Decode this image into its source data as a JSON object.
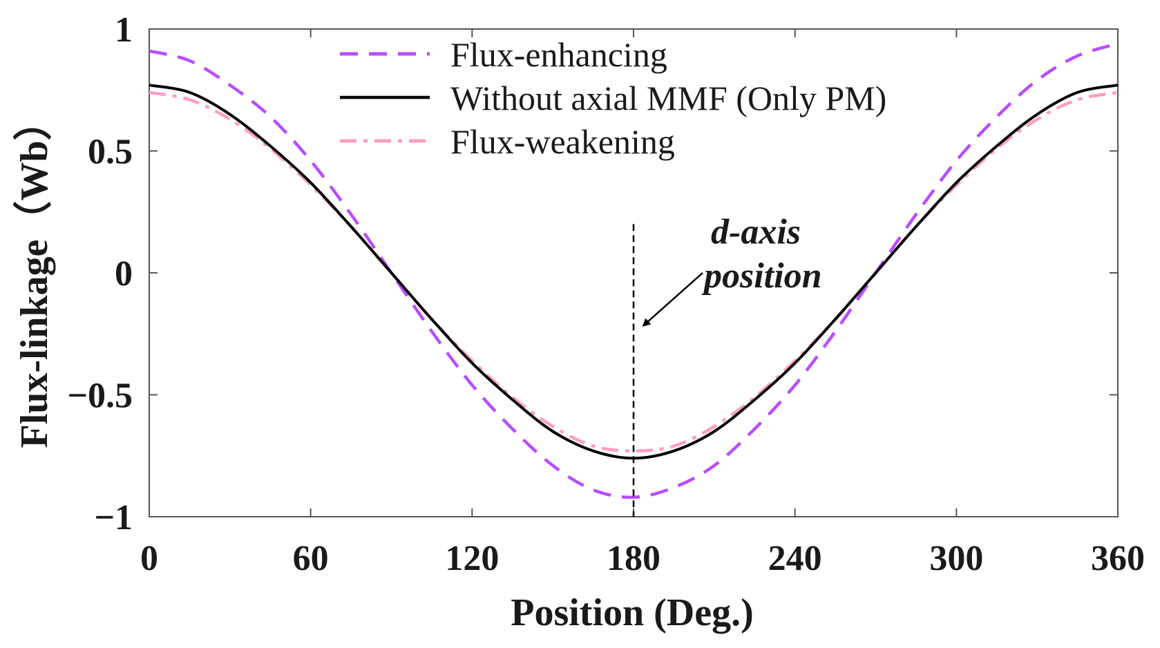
{
  "chart_data": {
    "type": "line",
    "xlabel": "Position (Deg.)",
    "ylabel": "Flux-linkage（Wb）",
    "xlim": [
      0,
      360
    ],
    "ylim": [
      -1,
      1
    ],
    "xticks": [
      "0",
      "60",
      "120",
      "180",
      "240",
      "300",
      "360"
    ],
    "yticks": [
      "1",
      "0.5",
      "0",
      "−0.5",
      "−1"
    ],
    "grid": false,
    "legend_position": "top",
    "x": [
      0,
      15,
      30,
      45,
      60,
      75,
      90,
      105,
      120,
      135,
      150,
      165,
      180,
      195,
      210,
      225,
      240,
      255,
      270,
      285,
      300,
      315,
      330,
      345,
      360
    ],
    "series": [
      {
        "name": "Flux-enhancing",
        "color": "#b84cff",
        "style": "dashed",
        "values": [
          0.91,
          0.87,
          0.77,
          0.64,
          0.46,
          0.24,
          0.0,
          -0.24,
          -0.46,
          -0.64,
          -0.79,
          -0.89,
          -0.92,
          -0.88,
          -0.79,
          -0.64,
          -0.46,
          -0.24,
          0.0,
          0.24,
          0.46,
          0.64,
          0.79,
          0.89,
          0.94
        ]
      },
      {
        "name": "Without axial MMF (Only PM)",
        "color": "#000000",
        "style": "solid",
        "values": [
          0.77,
          0.74,
          0.65,
          0.52,
          0.37,
          0.19,
          0.0,
          -0.19,
          -0.37,
          -0.52,
          -0.65,
          -0.73,
          -0.76,
          -0.73,
          -0.65,
          -0.52,
          -0.37,
          -0.19,
          0.0,
          0.19,
          0.37,
          0.52,
          0.65,
          0.74,
          0.77
        ]
      },
      {
        "name": "Flux-weakening",
        "color": "#ff9dc4",
        "style": "dashdot",
        "values": [
          0.74,
          0.71,
          0.63,
          0.51,
          0.36,
          0.19,
          0.0,
          -0.19,
          -0.36,
          -0.51,
          -0.63,
          -0.71,
          -0.73,
          -0.71,
          -0.63,
          -0.51,
          -0.36,
          -0.19,
          0.0,
          0.19,
          0.36,
          0.51,
          0.63,
          0.71,
          0.74
        ]
      }
    ],
    "annotations": [
      {
        "text_lines": [
          "d-axis",
          "position"
        ],
        "x": 180,
        "y_from": 0.2,
        "y_to": -1,
        "marker": "vertical-dashed-line-with-arrow"
      }
    ]
  }
}
